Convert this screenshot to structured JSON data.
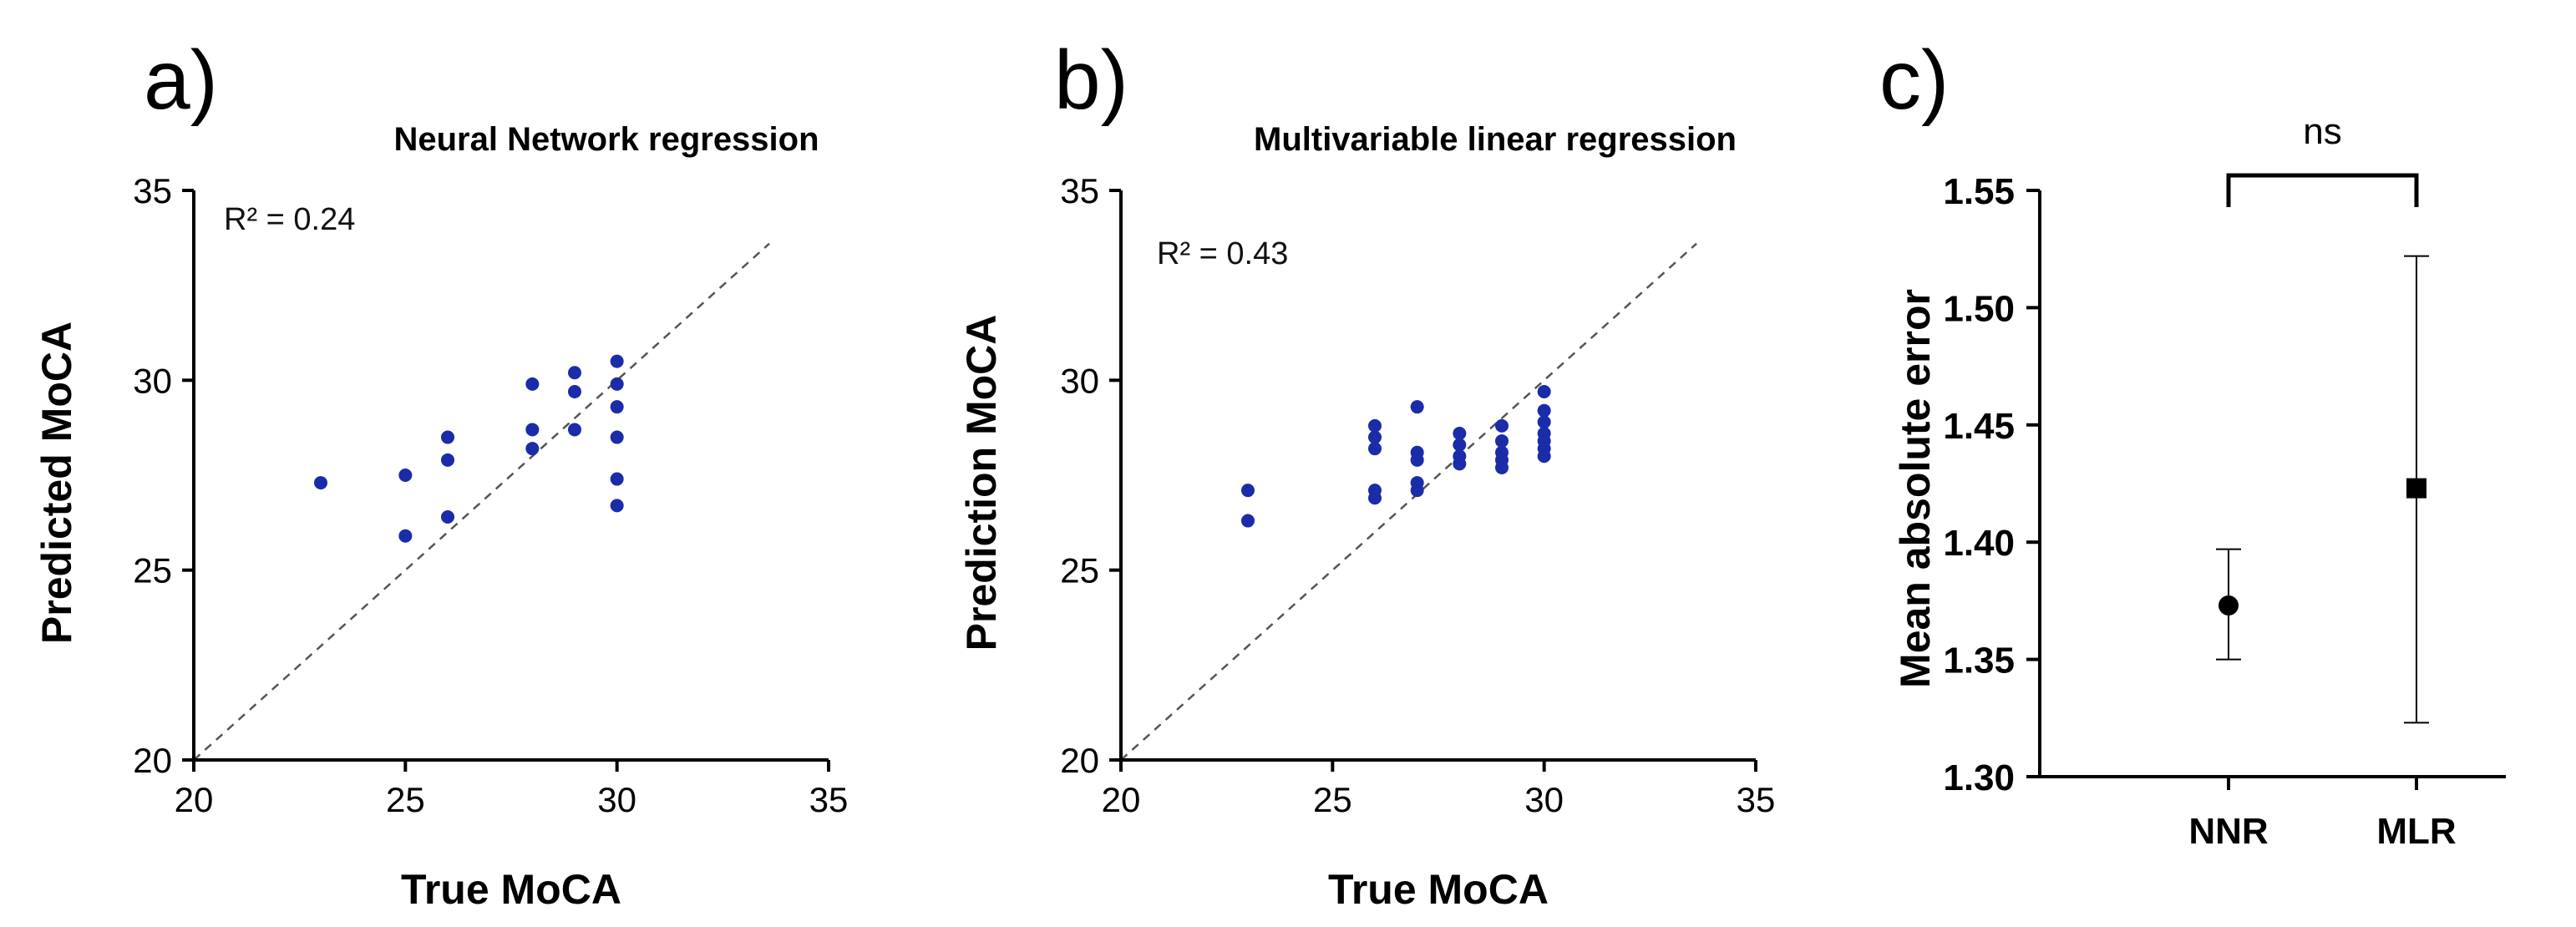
{
  "panels": {
    "a": {
      "letter": "a)",
      "chart_data": {
        "type": "scatter",
        "title": "Neural Network regression",
        "xlabel": "True MoCA",
        "ylabel": "Predicted MoCA",
        "xlim": [
          20,
          35
        ],
        "ylim": [
          20,
          35
        ],
        "xticks": [
          "20",
          "25",
          "30",
          "35"
        ],
        "yticks": [
          "20",
          "25",
          "30",
          "35"
        ],
        "annotation": "R² = 0.24",
        "reference_line": "identity (y = x), dashed",
        "color": "#1a2ca8",
        "points": [
          {
            "x": 23,
            "y": 27.3
          },
          {
            "x": 25,
            "y": 27.5
          },
          {
            "x": 25,
            "y": 25.9
          },
          {
            "x": 26,
            "y": 28.5
          },
          {
            "x": 26,
            "y": 27.9
          },
          {
            "x": 26,
            "y": 26.4
          },
          {
            "x": 28,
            "y": 29.9
          },
          {
            "x": 28,
            "y": 28.7
          },
          {
            "x": 28,
            "y": 28.2
          },
          {
            "x": 29,
            "y": 30.2
          },
          {
            "x": 29,
            "y": 29.7
          },
          {
            "x": 29,
            "y": 28.7
          },
          {
            "x": 30,
            "y": 30.5
          },
          {
            "x": 30,
            "y": 29.9
          },
          {
            "x": 30,
            "y": 29.3
          },
          {
            "x": 30,
            "y": 28.5
          },
          {
            "x": 30,
            "y": 27.4
          },
          {
            "x": 30,
            "y": 26.7
          }
        ]
      }
    },
    "b": {
      "letter": "b)",
      "chart_data": {
        "type": "scatter",
        "title": "Multivariable linear regression",
        "xlabel": "True MoCA",
        "ylabel": "Prediction MoCA",
        "xlim": [
          20,
          35
        ],
        "ylim": [
          20,
          35
        ],
        "xticks": [
          "20",
          "25",
          "30",
          "35"
        ],
        "yticks": [
          "20",
          "25",
          "30",
          "35"
        ],
        "annotation": "R² = 0.43",
        "reference_line": "identity (y = x), dashed",
        "color": "#1a2ca8",
        "points": [
          {
            "x": 23,
            "y": 27.1
          },
          {
            "x": 23,
            "y": 26.3
          },
          {
            "x": 26,
            "y": 28.8
          },
          {
            "x": 26,
            "y": 28.5
          },
          {
            "x": 26,
            "y": 28.2
          },
          {
            "x": 26,
            "y": 27.1
          },
          {
            "x": 26,
            "y": 26.9
          },
          {
            "x": 27,
            "y": 29.3
          },
          {
            "x": 27,
            "y": 28.1
          },
          {
            "x": 27,
            "y": 27.9
          },
          {
            "x": 27,
            "y": 27.3
          },
          {
            "x": 27,
            "y": 27.1
          },
          {
            "x": 28,
            "y": 28.6
          },
          {
            "x": 28,
            "y": 28.3
          },
          {
            "x": 28,
            "y": 28.0
          },
          {
            "x": 28,
            "y": 27.8
          },
          {
            "x": 29,
            "y": 28.8
          },
          {
            "x": 29,
            "y": 28.4
          },
          {
            "x": 29,
            "y": 28.1
          },
          {
            "x": 29,
            "y": 27.9
          },
          {
            "x": 29,
            "y": 27.7
          },
          {
            "x": 30,
            "y": 29.7
          },
          {
            "x": 30,
            "y": 29.2
          },
          {
            "x": 30,
            "y": 28.9
          },
          {
            "x": 30,
            "y": 28.6
          },
          {
            "x": 30,
            "y": 28.4
          },
          {
            "x": 30,
            "y": 28.2
          },
          {
            "x": 30,
            "y": 28.0
          }
        ]
      }
    },
    "c": {
      "letter": "c)",
      "chart_data": {
        "type": "errorbar",
        "title": "",
        "xlabel": "",
        "ylabel": "Mean absolute error",
        "ylim": [
          1.3,
          1.55
        ],
        "yticks": [
          "1.30",
          "1.35",
          "1.40",
          "1.45",
          "1.50",
          "1.55"
        ],
        "categories": [
          "NNR",
          "MLR"
        ],
        "means": [
          1.373,
          1.423
        ],
        "lower": [
          1.35,
          1.323
        ],
        "upper": [
          1.397,
          1.522
        ],
        "markers": [
          "circle",
          "square"
        ],
        "significance": "ns"
      }
    }
  }
}
